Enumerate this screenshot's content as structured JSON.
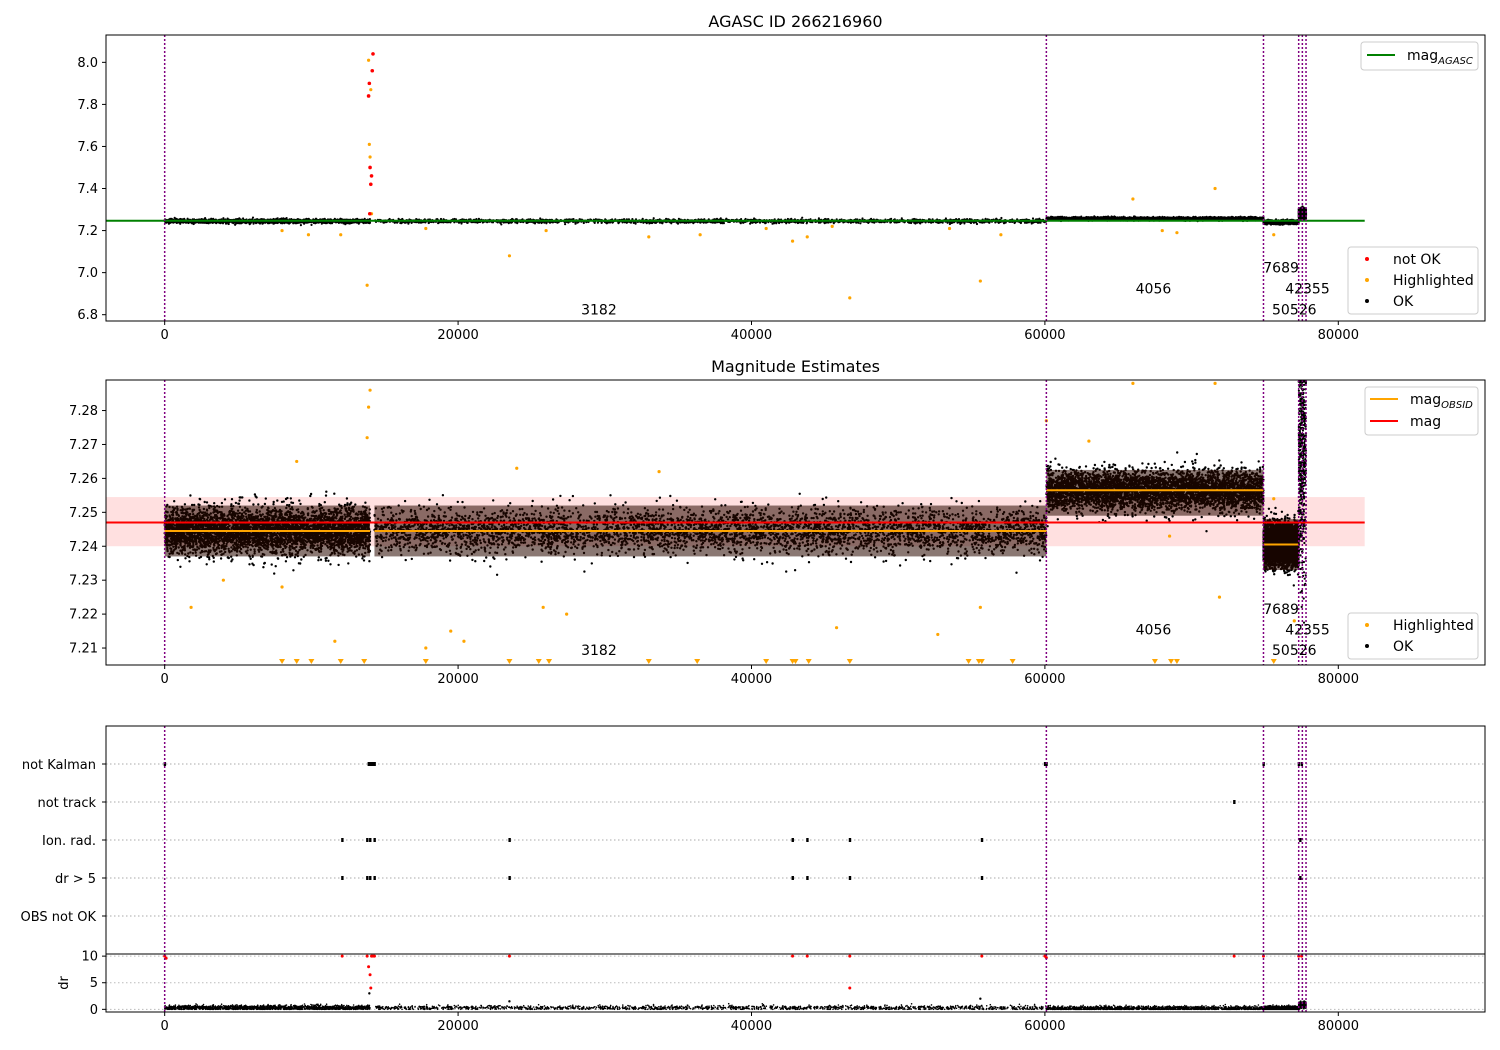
{
  "chart_data": [
    {
      "id": "top",
      "type": "scatter",
      "title": "AGASC ID 266216960",
      "xlim": [
        -4000,
        90000
      ],
      "ylim": [
        6.77,
        8.13
      ],
      "xticks": [
        0,
        20000,
        40000,
        60000,
        80000
      ],
      "xtick_labels": [
        "0",
        "20000",
        "40000",
        "60000",
        "80000"
      ],
      "yticks": [
        6.8,
        7.0,
        7.2,
        7.4,
        7.6,
        7.8,
        8.0
      ],
      "ytick_labels": [
        "6.8",
        "7.0",
        "7.2",
        "7.4",
        "7.6",
        "7.8",
        "8.0"
      ],
      "vlines": [
        0,
        60100,
        74900,
        77300,
        77550,
        77800
      ],
      "mag_agasc": 7.247,
      "mag_agasc_xrange": [
        -4000,
        81800
      ],
      "segments": [
        {
          "x0": 0,
          "x1": 14000,
          "center": 7.245,
          "spread": 0.01
        },
        {
          "x0": 14300,
          "x1": 60100,
          "center": 7.245,
          "spread": 0.01
        },
        {
          "x0": 60100,
          "x1": 74900,
          "center": 7.257,
          "spread": 0.008
        },
        {
          "x0": 74900,
          "x1": 77300,
          "center": 7.24,
          "spread": 0.008
        },
        {
          "x0": 77300,
          "x1": 77800,
          "center": 7.28,
          "spread": 0.02
        }
      ],
      "highlighted_points": [
        [
          13800,
          6.94
        ],
        [
          13900,
          8.01
        ],
        [
          13950,
          7.61
        ],
        [
          14000,
          7.55
        ],
        [
          14050,
          7.87
        ],
        [
          14100,
          7.28
        ],
        [
          23500,
          7.08
        ],
        [
          46700,
          6.88
        ],
        [
          55600,
          6.96
        ],
        [
          66000,
          7.35
        ],
        [
          71600,
          7.4
        ],
        [
          8000,
          7.2
        ],
        [
          9800,
          7.18
        ],
        [
          12000,
          7.18
        ],
        [
          17800,
          7.21
        ],
        [
          26000,
          7.2
        ],
        [
          33000,
          7.17
        ],
        [
          36500,
          7.18
        ],
        [
          41000,
          7.21
        ],
        [
          42800,
          7.15
        ],
        [
          43800,
          7.17
        ],
        [
          45500,
          7.22
        ],
        [
          53500,
          7.21
        ],
        [
          57000,
          7.18
        ],
        [
          68000,
          7.2
        ],
        [
          69000,
          7.19
        ],
        [
          75600,
          7.18
        ]
      ],
      "not_ok_points": [
        [
          13900,
          7.84
        ],
        [
          13950,
          7.9
        ],
        [
          14000,
          7.5
        ],
        [
          14050,
          7.42
        ],
        [
          14100,
          7.46
        ],
        [
          14150,
          7.96
        ],
        [
          14200,
          8.04
        ],
        [
          13980,
          7.28
        ]
      ],
      "obs_labels": [
        {
          "x": 29600,
          "y": 6.8,
          "text": "3182"
        },
        {
          "x": 67400,
          "y": 6.9,
          "text": "4056"
        },
        {
          "x": 76100,
          "y": 7.0,
          "text": "7689"
        },
        {
          "x": 77900,
          "y": 6.9,
          "text": "42355"
        },
        {
          "x": 77000,
          "y": 6.8,
          "text": "50526"
        }
      ],
      "legend_upper": {
        "entries": [
          {
            "label": "mag",
            "sub": "AGASC",
            "color": "#008000"
          }
        ]
      },
      "legend_lower": {
        "entries": [
          {
            "label": "not OK",
            "color": "#ff0000"
          },
          {
            "label": "Highlighted",
            "color": "#ffa500"
          },
          {
            "label": "OK",
            "color": "#000000"
          }
        ]
      }
    },
    {
      "id": "middle",
      "type": "scatter",
      "title": "Magnitude Estimates",
      "xlim": [
        -4000,
        90000
      ],
      "ylim": [
        7.205,
        7.289
      ],
      "xticks": [
        0,
        20000,
        40000,
        60000,
        80000
      ],
      "xtick_labels": [
        "0",
        "20000",
        "40000",
        "60000",
        "80000"
      ],
      "yticks": [
        7.21,
        7.22,
        7.23,
        7.24,
        7.25,
        7.26,
        7.27,
        7.28
      ],
      "ytick_labels": [
        "7.21",
        "7.22",
        "7.23",
        "7.24",
        "7.25",
        "7.26",
        "7.27",
        "7.28"
      ],
      "vlines": [
        0,
        60100,
        74900,
        77300,
        77550,
        77800
      ],
      "mag": 7.247,
      "mag_band": [
        7.24,
        7.2545
      ],
      "mag_xrange": [
        -4000,
        81800
      ],
      "segments": [
        {
          "x0": 0,
          "x1": 14000,
          "center": 7.2445,
          "band": [
            7.237,
            7.252
          ],
          "spread": 0.0075
        },
        {
          "x0": 14300,
          "x1": 60100,
          "center": 7.2445,
          "band": [
            7.237,
            7.252
          ],
          "spread": 0.0075
        },
        {
          "x0": 60100,
          "x1": 74900,
          "center": 7.2565,
          "band": [
            7.249,
            7.2625
          ],
          "spread": 0.0065
        },
        {
          "x0": 74900,
          "x1": 77300,
          "center": 7.2405,
          "band": [
            7.233,
            7.248
          ],
          "spread": 0.0065
        }
      ],
      "highlighted_points": [
        [
          1800,
          7.222
        ],
        [
          9000,
          7.265
        ],
        [
          11600,
          7.212
        ],
        [
          17800,
          7.21
        ],
        [
          19500,
          7.215
        ],
        [
          20400,
          7.212
        ],
        [
          24000,
          7.263
        ],
        [
          25800,
          7.222
        ],
        [
          27400,
          7.22
        ],
        [
          33700,
          7.262
        ],
        [
          45800,
          7.216
        ],
        [
          52700,
          7.214
        ],
        [
          55600,
          7.222
        ],
        [
          60100,
          7.277
        ],
        [
          63000,
          7.271
        ],
        [
          68500,
          7.243
        ],
        [
          71900,
          7.225
        ],
        [
          75600,
          7.254
        ],
        [
          77000,
          7.218
        ],
        [
          4000,
          7.23
        ],
        [
          8000,
          7.228
        ],
        [
          13800,
          7.272
        ],
        [
          13900,
          7.281
        ],
        [
          14000,
          7.286
        ],
        [
          66000,
          7.288
        ],
        [
          71600,
          7.288
        ]
      ],
      "clipped_low_x": [
        8000,
        9000,
        10000,
        12000,
        13600,
        17800,
        23500,
        25500,
        26200,
        33000,
        36300,
        41000,
        42800,
        43000,
        43900,
        46700,
        54800,
        55500,
        55700,
        57800,
        67500,
        68600,
        69000,
        75600
      ],
      "obs_labels": [
        {
          "x": 29600,
          "y": 7.208,
          "text": "3182"
        },
        {
          "x": 67400,
          "y": 7.214,
          "text": "4056"
        },
        {
          "x": 76100,
          "y": 7.22,
          "text": "7689"
        },
        {
          "x": 77900,
          "y": 7.214,
          "text": "42355"
        },
        {
          "x": 77000,
          "y": 7.208,
          "text": "50526"
        }
      ],
      "legend_upper": {
        "entries": [
          {
            "label": "mag",
            "sub": "OBSID",
            "color": "#ffa500"
          },
          {
            "label": "mag",
            "sub": "",
            "color": "#ff0000"
          }
        ]
      },
      "legend_lower": {
        "entries": [
          {
            "label": "Highlighted",
            "color": "#ffa500"
          },
          {
            "label": "OK",
            "color": "#000000"
          }
        ]
      }
    },
    {
      "id": "flags",
      "type": "scatter",
      "xlim": [
        -4000,
        90000
      ],
      "categories": [
        "not Kalman",
        "not track",
        "Ion. rad.",
        "dr > 5",
        "OBS not OK"
      ],
      "vlines": [
        0,
        60100,
        74900,
        77300,
        77550,
        77800
      ],
      "flag_points": {
        "not Kalman": [
          0,
          13900,
          14000,
          14100,
          14200,
          14300,
          60000,
          60100,
          74900,
          77300,
          77500
        ],
        "not track": [
          72900
        ],
        "Ion. rad.": [
          12100,
          13800,
          14000,
          14300,
          23500,
          42800,
          43800,
          46700,
          55700,
          77400
        ],
        "dr > 5": [
          12100,
          13800,
          14000,
          14300,
          23500,
          42800,
          43800,
          46700,
          55700,
          77400
        ],
        "OBS not OK": []
      }
    },
    {
      "id": "dr",
      "type": "scatter",
      "ylabel": "dr",
      "xlim": [
        -4000,
        90000
      ],
      "ylim": [
        -0.5,
        10.4
      ],
      "xticks": [
        0,
        20000,
        40000,
        60000,
        80000
      ],
      "xtick_labels": [
        "0",
        "20000",
        "40000",
        "60000",
        "80000"
      ],
      "yticks": [
        0,
        5,
        10
      ],
      "ytick_labels": [
        "0",
        "5",
        "10"
      ],
      "vlines": [
        0,
        60100,
        74900,
        77300,
        77550,
        77800
      ],
      "baseline_segments": [
        [
          0,
          14000,
          0.3
        ],
        [
          14300,
          60100,
          0.3
        ],
        [
          60100,
          74900,
          0.15
        ],
        [
          74900,
          77300,
          0.1
        ],
        [
          77300,
          77800,
          0.8
        ]
      ],
      "red_points": [
        [
          0,
          10
        ],
        [
          100,
          9.6
        ],
        [
          12100,
          10
        ],
        [
          13800,
          10
        ],
        [
          13900,
          8
        ],
        [
          14000,
          6.5
        ],
        [
          14050,
          4
        ],
        [
          14100,
          10
        ],
        [
          14200,
          10
        ],
        [
          14300,
          10
        ],
        [
          23500,
          10
        ],
        [
          42800,
          10
        ],
        [
          43800,
          10
        ],
        [
          46700,
          10
        ],
        [
          46700,
          4
        ],
        [
          55700,
          10
        ],
        [
          60000,
          10
        ],
        [
          60100,
          9.7
        ],
        [
          72900,
          10
        ],
        [
          74900,
          10
        ],
        [
          77300,
          10
        ],
        [
          77500,
          10
        ]
      ],
      "black_points": [
        [
          55600,
          2
        ],
        [
          23500,
          1.5
        ],
        [
          13950,
          3
        ]
      ]
    }
  ]
}
